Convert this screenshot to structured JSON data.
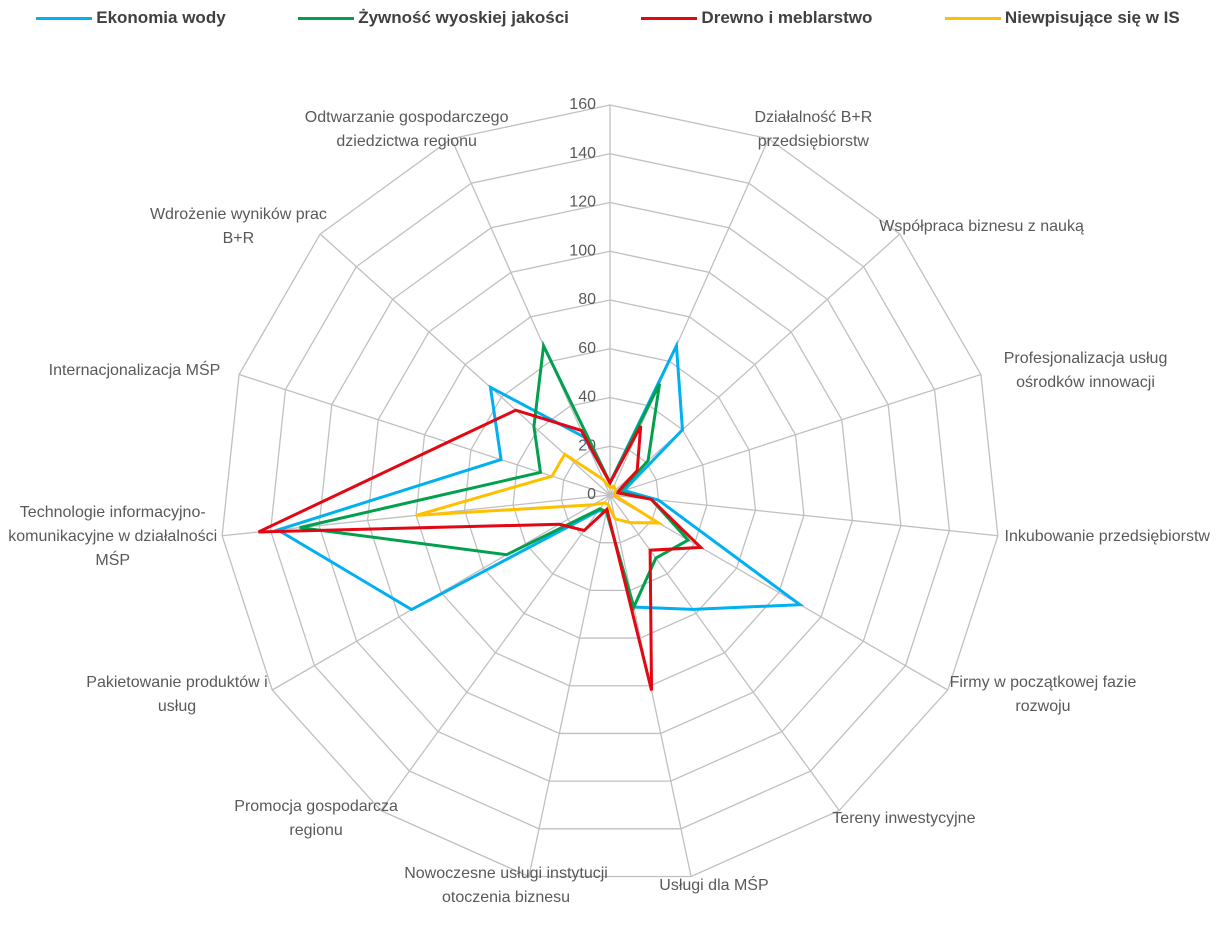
{
  "chart_data": {
    "type": "radar",
    "categories": [
      null,
      "Działalność B+R przedsiębiorstw",
      "Współpraca biznesu z nauką",
      "Profesjonalizacja usług ośrodków innowacji",
      "Inkubowanie przedsiębiorstw",
      "Firmy w początkowej fazie rozwoju",
      "Tereny inwestycyjne",
      "Usługi dla MŚP",
      "Nowoczesne usługi instytucji otoczenia biznesu",
      "Promocja gospodarcza regionu",
      "Pakietowanie produktów i usług",
      "Technologie informacyjno-komunikacyjne w działalności MŚP",
      "Internacjonalizacja MŚP",
      "Wdrożenie wyników prac B+R",
      "Odtwarzanie gospodarczego dziedzictwa regionu"
    ],
    "series": [
      {
        "name": "Ekonomia wody",
        "color": "#00b0f0",
        "values": [
          5,
          67,
          40,
          6,
          20,
          90,
          58,
          47,
          7,
          8,
          94,
          137,
          47,
          66,
          26
        ]
      },
      {
        "name": "Żywność wyoskiej jakości",
        "color": "#00a04e",
        "values": [
          5,
          50,
          21,
          4,
          17,
          37,
          32,
          47,
          7,
          7,
          49,
          128,
          30,
          42,
          67
        ]
      },
      {
        "name": "Drewno i meblarstwo",
        "color": "#e30613",
        "values": [
          5,
          31,
          15,
          3,
          17,
          43,
          28,
          82,
          6,
          18,
          24,
          145,
          70,
          52,
          29
        ]
      },
      {
        "name": "Niewpisujące się w IS",
        "color": "#ffc000",
        "values": [
          3,
          4,
          3,
          2,
          2,
          23,
          14,
          10,
          4,
          4,
          8,
          80,
          25,
          25,
          7
        ]
      }
    ],
    "ylim": [
      0,
      160
    ],
    "yticks": [
      0,
      20,
      40,
      60,
      80,
      100,
      120,
      140,
      160
    ],
    "grid": true,
    "legend": "top"
  }
}
